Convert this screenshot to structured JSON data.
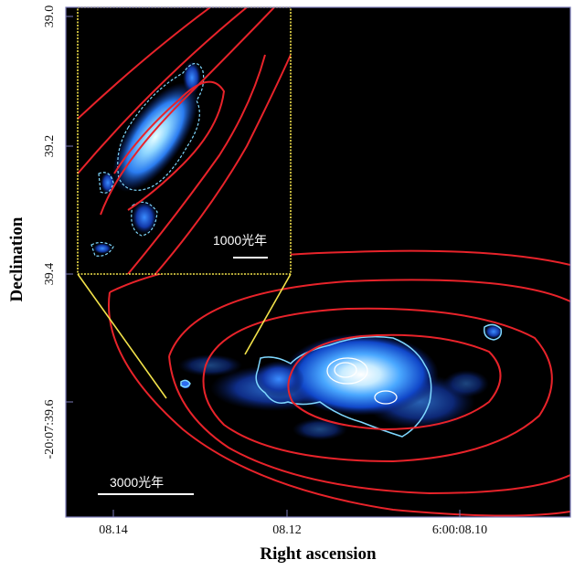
{
  "figure": {
    "x_axis_title": "Right ascension",
    "y_axis_title": "Declination",
    "x_ticks": [
      "08.14",
      "08.12",
      "6:00:08.10"
    ],
    "y_ticks": [
      "39.0",
      "39.2",
      "39.4",
      "-20:07:39.6"
    ],
    "main_scale_bar_label": "3000光年",
    "inset_scale_bar_label": "1000光年",
    "colors": {
      "background": "#000000",
      "contour": "#e8232a",
      "inset_frame": "#f2e24a",
      "emission_contour": "#7fd8ff"
    }
  }
}
